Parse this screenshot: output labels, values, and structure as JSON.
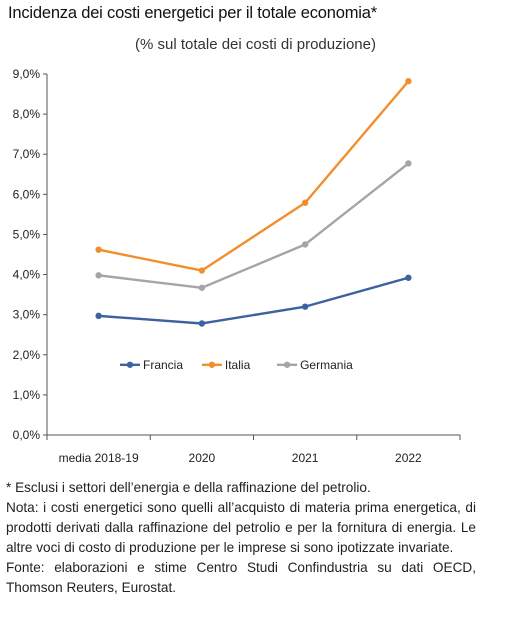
{
  "chart_data": {
    "type": "line",
    "title": "Incidenza dei costi energetici per il totale economia*",
    "subtitle": "(% sul totale dei costi di produzione)",
    "categories": [
      "media 2018-19",
      "2020",
      "2021",
      "2022"
    ],
    "ylim": [
      0,
      9
    ],
    "yticks": [
      "0,0%",
      "1,0%",
      "2,0%",
      "3,0%",
      "4,0%",
      "5,0%",
      "6,0%",
      "7,0%",
      "8,0%",
      "9,0%"
    ],
    "legend_position": "center",
    "grid": false,
    "series": [
      {
        "name": "Francia",
        "values": [
          2.97,
          2.78,
          3.2,
          3.92
        ],
        "color": "#3C62A0"
      },
      {
        "name": "Italia",
        "values": [
          4.62,
          4.1,
          5.79,
          8.82
        ],
        "color": "#F28E2B"
      },
      {
        "name": "Germania",
        "values": [
          3.98,
          3.67,
          4.75,
          6.77
        ],
        "color": "#A5A5A5"
      }
    ]
  },
  "notes": [
    "* Esclusi i settori dell’energia e della raffinazione del petrolio.",
    "Nota: i costi energetici sono quelli all’acquisto di materia prima energetica, di prodotti derivati dalla raffinazione del petrolio e per la fornitura di energia. Le altre voci di costo di produzione per le imprese si sono ipotizzate invariate.",
    "Fonte: elaborazioni e stime Centro Studi Confindustria su dati OECD, Thomson Reuters, Eurostat."
  ]
}
